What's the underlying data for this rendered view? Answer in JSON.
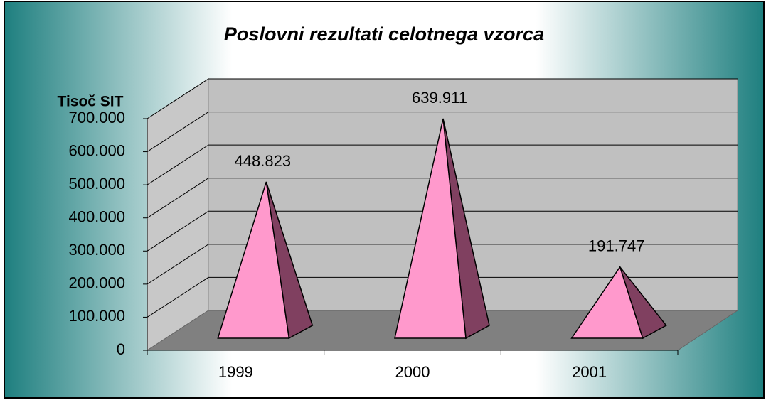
{
  "chart_data": {
    "type": "pyramid",
    "title": "Poslovni rezultati celotnega vzorca",
    "y_label": "Tisoč SIT",
    "categories": [
      "1999",
      "2000",
      "2001"
    ],
    "values": [
      448823,
      639911,
      191747
    ],
    "value_labels": [
      "448.823",
      "639.911",
      "191.747"
    ],
    "color": "#ff99cc",
    "ylim": [
      0,
      700000
    ],
    "yticks": [
      0,
      {
        "value": 100000,
        "label": "100.000"
      },
      {
        "value": 200000,
        "label": "200.000"
      },
      {
        "value": 300000,
        "label": "300.000"
      },
      {
        "value": 400000,
        "label": "400.000"
      },
      {
        "value": 500000,
        "label": "500.000"
      },
      {
        "value": 600000,
        "label": "600.000"
      },
      {
        "value": 700000,
        "label": "700.000"
      }
    ],
    "grid": true
  }
}
